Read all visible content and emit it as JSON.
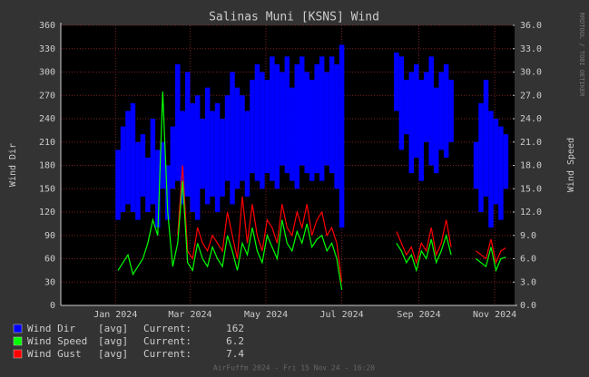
{
  "chart_data": {
    "type": "line",
    "title": "Salinas Muni [KSNS] Wind",
    "ylabel": "Wind Dir",
    "y2label": "Wind Speed",
    "watermark": "RRDTOOL / TOBI OETIKER",
    "footer": "AirFuffm 2024 - Fri 15 Nov 24 - 16:20",
    "xlim": [
      -44,
      321
    ],
    "xticks": [
      {
        "value": 0,
        "label": "Jan 2024"
      },
      {
        "value": 60,
        "label": "Mar 2024"
      },
      {
        "value": 121,
        "label": "May 2024"
      },
      {
        "value": 182,
        "label": "Jul 2024"
      },
      {
        "value": 244,
        "label": "Sep 2024"
      },
      {
        "value": 305,
        "label": "Nov 2024"
      }
    ],
    "ylim": [
      0,
      360
    ],
    "yticks": [
      0,
      30,
      60,
      90,
      120,
      150,
      180,
      210,
      240,
      270,
      300,
      330,
      360
    ],
    "y2lim": [
      0,
      36
    ],
    "y2ticks": [
      {
        "value": 0,
        "label": "0.0"
      },
      {
        "value": 3,
        "label": "3.0"
      },
      {
        "value": 6,
        "label": "6.0"
      },
      {
        "value": 9,
        "label": "9.0"
      },
      {
        "value": 12,
        "label": "12.0"
      },
      {
        "value": 15,
        "label": "15.0"
      },
      {
        "value": 18,
        "label": "18.0"
      },
      {
        "value": 21,
        "label": "21.0"
      },
      {
        "value": 24,
        "label": "24.0"
      },
      {
        "value": 27,
        "label": "27.0"
      },
      {
        "value": 30,
        "label": "30.0"
      },
      {
        "value": 33,
        "label": "33.0"
      },
      {
        "value": 36,
        "label": "36.0"
      }
    ],
    "grid": true,
    "x": [
      2,
      6,
      10,
      14,
      18,
      22,
      26,
      30,
      34,
      38,
      42,
      46,
      50,
      54,
      58,
      62,
      66,
      70,
      74,
      78,
      82,
      86,
      90,
      94,
      98,
      102,
      106,
      110,
      114,
      118,
      122,
      126,
      130,
      134,
      138,
      142,
      146,
      150,
      154,
      158,
      162,
      166,
      170,
      174,
      178,
      182,
      186,
      190,
      194,
      198,
      202,
      206,
      210,
      214,
      218,
      222,
      226,
      230,
      234,
      238,
      242,
      246,
      250,
      254,
      258,
      262,
      266,
      270,
      274,
      278,
      282,
      286,
      290,
      294,
      298,
      302,
      306,
      310,
      314
    ],
    "series": [
      {
        "name": "Wind Dir",
        "type": "range",
        "color": "#0000ff",
        "stat": "[avg]",
        "current_label": "Current:",
        "current": 162,
        "min": [
          110,
          120,
          130,
          120,
          110,
          140,
          120,
          130,
          100,
          150,
          110,
          150,
          160,
          130,
          140,
          120,
          110,
          150,
          130,
          140,
          120,
          140,
          160,
          130,
          150,
          160,
          140,
          170,
          160,
          150,
          170,
          160,
          150,
          180,
          170,
          160,
          150,
          180,
          170,
          160,
          170,
          160,
          180,
          170,
          150,
          100,
          null,
          null,
          null,
          null,
          null,
          null,
          null,
          null,
          null,
          null,
          250,
          200,
          220,
          170,
          190,
          160,
          210,
          180,
          170,
          200,
          190,
          210,
          null,
          null,
          null,
          null,
          150,
          120,
          140,
          100,
          130,
          110,
          150
        ],
        "max": [
          200,
          230,
          250,
          260,
          210,
          220,
          190,
          240,
          200,
          210,
          180,
          230,
          310,
          250,
          300,
          260,
          270,
          240,
          280,
          250,
          260,
          240,
          270,
          300,
          280,
          270,
          250,
          290,
          310,
          300,
          290,
          320,
          310,
          300,
          320,
          280,
          310,
          320,
          300,
          290,
          310,
          320,
          300,
          320,
          310,
          335,
          null,
          null,
          null,
          null,
          null,
          null,
          null,
          null,
          null,
          null,
          325,
          320,
          290,
          300,
          310,
          290,
          300,
          320,
          280,
          300,
          310,
          290,
          null,
          null,
          null,
          null,
          210,
          260,
          290,
          250,
          240,
          230,
          220
        ]
      },
      {
        "name": "Wind Speed",
        "type": "line",
        "axis": "y2",
        "color": "#00ff00",
        "stat": "[avg]",
        "current_label": "Current:",
        "current": 6.2,
        "values": [
          4.5,
          5.5,
          6.5,
          4.0,
          5.0,
          6.0,
          8.0,
          11.0,
          9.0,
          27.5,
          12.0,
          5.0,
          8.0,
          16.0,
          5.5,
          4.5,
          8.0,
          6.0,
          5.0,
          7.5,
          6.0,
          5.0,
          9.0,
          7.0,
          4.5,
          8.0,
          6.5,
          10.0,
          7.0,
          5.5,
          9.0,
          7.5,
          6.0,
          11.0,
          8.0,
          7.0,
          9.5,
          8.0,
          10.5,
          7.5,
          8.5,
          9.0,
          7.0,
          8.0,
          6.0,
          2.0,
          null,
          null,
          null,
          null,
          null,
          null,
          null,
          null,
          null,
          null,
          8.0,
          7.0,
          5.5,
          6.5,
          4.5,
          7.0,
          6.0,
          8.5,
          5.5,
          7.0,
          9.0,
          6.5,
          null,
          null,
          null,
          null,
          6.0,
          5.5,
          5.0,
          7.5,
          4.5,
          6.0,
          6.2
        ]
      },
      {
        "name": "Wind Gust",
        "type": "line",
        "axis": "y2",
        "color": "#ff0000",
        "stat": "[avg]",
        "current_label": "Current:",
        "current": 7.4,
        "values": [
          null,
          null,
          null,
          null,
          null,
          null,
          null,
          null,
          null,
          null,
          null,
          null,
          9.0,
          18.0,
          7.0,
          6.0,
          10.0,
          8.0,
          7.0,
          9.0,
          8.0,
          7.0,
          12.0,
          9.0,
          6.0,
          14.0,
          8.0,
          13.0,
          9.0,
          7.0,
          11.0,
          10.0,
          8.0,
          13.0,
          10.0,
          9.0,
          12.0,
          10.0,
          13.0,
          9.0,
          11.0,
          12.0,
          9.0,
          10.0,
          8.0,
          3.0,
          null,
          null,
          null,
          null,
          null,
          null,
          null,
          null,
          null,
          null,
          9.5,
          8.0,
          6.5,
          7.5,
          5.5,
          8.0,
          7.0,
          10.0,
          6.5,
          8.0,
          11.0,
          7.5,
          null,
          null,
          null,
          null,
          7.0,
          6.5,
          6.0,
          8.5,
          5.5,
          7.0,
          7.4
        ]
      }
    ]
  }
}
